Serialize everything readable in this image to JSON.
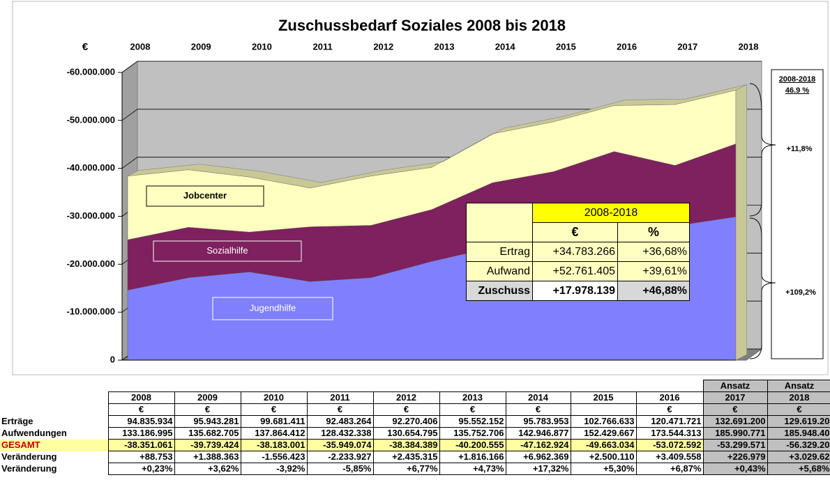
{
  "chart_data": {
    "type": "area",
    "stacked": true,
    "title": "Zuschussbedarf  Soziales  2008 bis 2018",
    "ylabel": "€",
    "categories": [
      "2008",
      "2009",
      "2010",
      "2011",
      "2012",
      "2013",
      "2014",
      "2015",
      "2016",
      "2017",
      "2018"
    ],
    "series": [
      {
        "name": "Jugendhilfe",
        "color": "#8080ff",
        "values": [
          -14600000,
          -17200000,
          -18400000,
          -16400000,
          -17200000,
          -20600000,
          -23500000,
          -25000000,
          -26500000,
          -28000000,
          -29900000
        ]
      },
      {
        "name": "Sozialhilfe",
        "color": "#7f205f",
        "values": [
          -10500000,
          -10500000,
          -8300000,
          -11400000,
          -10900000,
          -10800000,
          -13500000,
          -14300000,
          -17000000,
          -12600000,
          -15200000
        ]
      },
      {
        "name": "Jobcenter",
        "color": "#ffffc0",
        "values": [
          -13300000,
          -12000000,
          -11500000,
          -8100000,
          -10300000,
          -8800000,
          -10200000,
          -10400000,
          -9600000,
          -12700000,
          -11200000
        ]
      }
    ],
    "ylim": [
      0,
      -60000000
    ],
    "yticks": [
      0,
      {
        "value": -10000000,
        "label": "-10.000.000"
      },
      {
        "value": -20000000,
        "label": "-20.000.000"
      },
      {
        "value": -30000000,
        "label": "-30.000.000"
      },
      {
        "value": -40000000,
        "label": "-40.000.000"
      },
      {
        "value": -50000000,
        "label": "-50.000.000"
      },
      {
        "value": -60000000,
        "label": "-60.000.000"
      }
    ],
    "grid": true,
    "annotations": {
      "period": "2008-2018",
      "total": "46.9 %",
      "upper": "+11,8%",
      "lower": "+109,2%"
    },
    "inset_table": {
      "header": "2008-2018",
      "columns": [
        "€",
        "%"
      ],
      "rows": [
        {
          "label": "Ertrag",
          "values": [
            "+34.783.266",
            "+36,68%"
          ]
        },
        {
          "label": "Aufwand",
          "values": [
            "+52.761.405",
            "+39,61%"
          ]
        },
        {
          "label": "Zuschuss",
          "values": [
            "+17.978.139",
            "+46,88%"
          ]
        }
      ]
    }
  },
  "table": {
    "columns": [
      {
        "year": "2008",
        "unit": "€"
      },
      {
        "year": "2009",
        "unit": "€"
      },
      {
        "year": "2010",
        "unit": "€"
      },
      {
        "year": "2011",
        "unit": "€"
      },
      {
        "year": "2012",
        "unit": "€"
      },
      {
        "year": "2013",
        "unit": "€"
      },
      {
        "year": "2014",
        "unit": "€"
      },
      {
        "year": "2015",
        "unit": null
      },
      {
        "year": "2016",
        "unit": "€"
      },
      {
        "year": "2017",
        "unit": "€",
        "note": "Ansatz"
      },
      {
        "year": "2018",
        "unit": "€",
        "note": "Ansatz"
      }
    ],
    "rows": [
      {
        "label": "Erträge",
        "cells": [
          "94.835.934",
          "95.943.281",
          "99.681.411",
          "92.483.264",
          "92.270.406",
          "95.552.152",
          "95.783.953",
          "102.766.633",
          "120.471.721",
          "132.691.200",
          "129.619.20"
        ]
      },
      {
        "label": "Aufwendungen",
        "cells": [
          "133.186.995",
          "135.682.705",
          "137.864.412",
          "128.432.338",
          "130.654.795",
          "135.752.706",
          "142.946.877",
          "152.429.667",
          "173.544.313",
          "185.990.771",
          "185.948.40"
        ]
      },
      {
        "label": "GESAMT",
        "cells": [
          "-38.351.061",
          "-39.739.424",
          "-38.183.001",
          "-35.949.074",
          "-38.384.389",
          "-40.200.555",
          "-47.162.924",
          "-49.663.034",
          "-53.072.592",
          "-53.299.571",
          "-56.329.20"
        ]
      },
      {
        "label": "Veränderung",
        "cells": [
          "+88.753",
          "+1.388.363",
          "-1.556.423",
          "-2.233.927",
          "+2.435.315",
          "+1.816.166",
          "+6.962.369",
          "+2.500.110",
          "+3.409.558",
          "+226.979",
          "+3.029.62"
        ]
      },
      {
        "label": "Veränderung",
        "cells": [
          "+0,23%",
          "+3,62%",
          "-3,92%",
          "-5,85%",
          "+6,77%",
          "+4,73%",
          "+17,32%",
          "+5,30%",
          "+6,87%",
          "+0,43%",
          "+5,68%"
        ]
      }
    ]
  }
}
